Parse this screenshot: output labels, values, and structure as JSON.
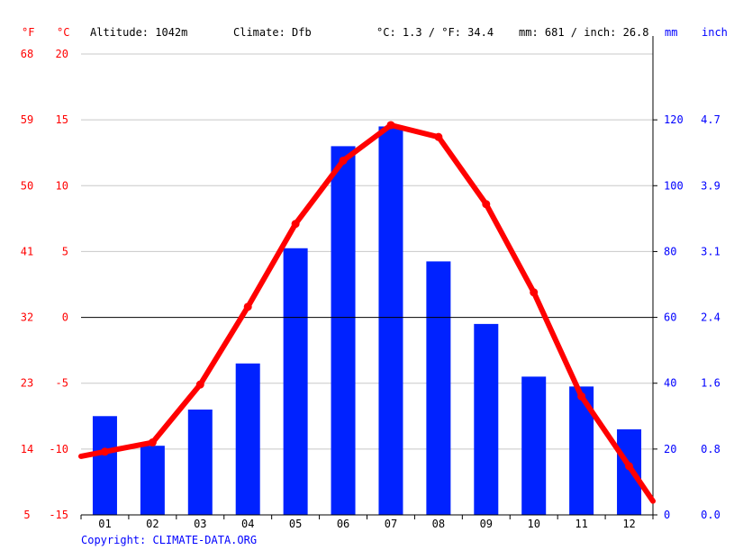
{
  "header": {
    "unit_f": "°F",
    "unit_c": "°C",
    "altitude": "Altitude: 1042m",
    "climate": "Climate: Dfb",
    "temp_avg": "°C: 1.3 / °F: 34.4",
    "precip_total": "mm: 681 / inch: 26.8",
    "unit_mm": "mm",
    "unit_inch": "inch"
  },
  "copyright": "Copyright: CLIMATE-DATA.ORG",
  "colors": {
    "bars": "#0022ff",
    "line": "#ff0000",
    "fahrenheit": "#ff0000",
    "celsius": "#ff0000",
    "precip_axis": "#0000ff"
  },
  "chart_data": {
    "type": "bar+line",
    "categories": [
      "01",
      "02",
      "03",
      "04",
      "05",
      "06",
      "07",
      "08",
      "09",
      "10",
      "11",
      "12"
    ],
    "series": [
      {
        "type": "bar",
        "axis": "precip_mm",
        "values": [
          30,
          21,
          32,
          46,
          81,
          112,
          118,
          77,
          58,
          42,
          39,
          26
        ]
      },
      {
        "type": "line",
        "axis": "temp_c",
        "values": [
          -10.2,
          -9.5,
          -5.1,
          0.8,
          7.1,
          11.9,
          14.6,
          13.7,
          8.6,
          1.9,
          -6.0,
          -11.3
        ]
      }
    ],
    "temp_c_axis": {
      "ylim": [
        -15,
        20
      ],
      "ticks": [
        "20",
        "15",
        "10",
        "5",
        "0",
        "-5",
        "-10",
        "-15"
      ]
    },
    "temp_f_axis": {
      "ticks": [
        "68",
        "59",
        "50",
        "41",
        "32",
        "23",
        "14",
        "5"
      ]
    },
    "precip_mm_axis": {
      "ylim": [
        0,
        140
      ],
      "ticks": [
        "120",
        "100",
        "80",
        "60",
        "40",
        "20",
        "0"
      ]
    },
    "precip_inch_axis": {
      "ticks": [
        "4.7",
        "3.9",
        "3.1",
        "2.4",
        "1.6",
        "0.8",
        "0.0"
      ]
    },
    "grid": true
  }
}
